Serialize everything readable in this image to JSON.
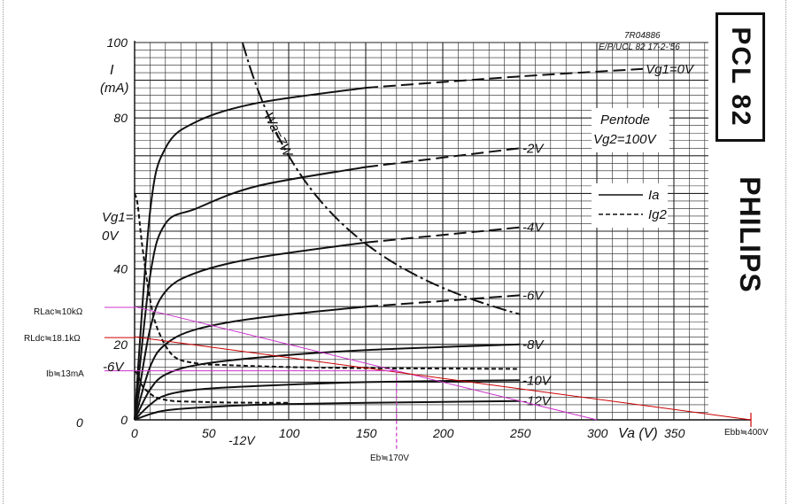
{
  "header": {
    "doc_code": "7R04886",
    "doc_ref": "E/P/UCL 82 17-2-'56",
    "tube_type": "PCL 82",
    "brand": "PHILIPS"
  },
  "chart_data": {
    "type": "line",
    "xlabel": "Va (V)",
    "ylabel_top": "I",
    "ylabel_unit": "(mA)",
    "xlim": [
      0,
      400
    ],
    "ylim": [
      0,
      100
    ],
    "x_ticks": [
      0,
      50,
      100,
      150,
      200,
      250,
      300,
      350
    ],
    "y_ticks": [
      {
        "v": 100,
        "t": "100"
      },
      {
        "v": 80,
        "t": "80"
      },
      {
        "v": 40,
        "t": "40"
      },
      {
        "v": 20,
        "t": "20"
      },
      {
        "v": 0,
        "t": "0"
      }
    ],
    "grid": true,
    "mode_text": "Pentode",
    "vg2_text": "Vg2=100V",
    "legend": [
      {
        "name": "Ia",
        "style": "solid"
      },
      {
        "name": "Ig2",
        "style": "dashed"
      }
    ],
    "vg1_axis_label": "Vg1=",
    "vg1_axis_value": "0V",
    "vg1_low_label": "-6V",
    "vg1_bottom_label": "-12V",
    "y_bottom_label": "0",
    "power_label": "Wa=7W",
    "series": [
      {
        "name": "Vg1=0V",
        "label": "Vg1=0V",
        "x": [
          0,
          10,
          20,
          40,
          80,
          150,
          250,
          330
        ],
        "y": [
          0,
          55,
          72,
          79,
          84,
          88,
          91,
          93
        ],
        "dashed_from": 150
      },
      {
        "name": "-2V",
        "label": "-2V",
        "x": [
          0,
          10,
          20,
          40,
          80,
          150,
          250
        ],
        "y": [
          0,
          38,
          52,
          56,
          62,
          67,
          72
        ],
        "dashed_from": 150
      },
      {
        "name": "-4V",
        "label": "-4V",
        "x": [
          0,
          10,
          20,
          40,
          80,
          150,
          250
        ],
        "y": [
          0,
          24,
          34,
          39,
          43,
          47,
          51
        ],
        "dashed_from": 150
      },
      {
        "name": "-6V",
        "label": "-6V",
        "x": [
          0,
          10,
          20,
          40,
          80,
          150,
          250
        ],
        "y": [
          0,
          14,
          20,
          24,
          27,
          30,
          33
        ],
        "dashed_from": 150
      },
      {
        "name": "-8V",
        "label": "-8V",
        "x": [
          0,
          10,
          20,
          40,
          80,
          150,
          250
        ],
        "y": [
          0,
          8,
          12,
          14.5,
          16.5,
          18.5,
          20
        ]
      },
      {
        "name": "-10V",
        "label": "-10V",
        "x": [
          0,
          10,
          20,
          40,
          80,
          150,
          250
        ],
        "y": [
          0,
          4,
          6.5,
          8,
          9,
          10,
          10.5
        ]
      },
      {
        "name": "-12V",
        "label": "-12V",
        "x": [
          0,
          10,
          20,
          40,
          80,
          150,
          250
        ],
        "y": [
          0,
          1.5,
          2.5,
          3.2,
          4,
          4.5,
          5
        ]
      }
    ],
    "ig2_curves": [
      {
        "x": [
          0,
          2,
          5,
          10,
          15,
          25,
          40,
          60,
          100,
          150,
          250
        ],
        "y": [
          60,
          57,
          46,
          32,
          24,
          17,
          15,
          14.5,
          14,
          13.7,
          13.5
        ]
      },
      {
        "x": [
          0,
          2,
          5,
          10,
          15,
          25,
          40,
          60,
          100
        ],
        "y": [
          13,
          12,
          9,
          7,
          5.8,
          5,
          4.8,
          4.6,
          4.5
        ]
      }
    ],
    "power_hyperbola_watts": 7,
    "load_lines": [
      {
        "name": "RLac≒10kΩ",
        "x": [
          0,
          300
        ],
        "y": [
          30,
          0
        ],
        "color": "#cc33cc"
      },
      {
        "name": "RLdc≒18.1kΩ",
        "x": [
          0,
          400
        ],
        "y": [
          22,
          0
        ],
        "color": "#cc0000"
      }
    ],
    "annotations": [
      {
        "text": "RLac≒10kΩ",
        "color": "#cc33cc",
        "y": 29.8
      },
      {
        "text": "RLdc≒18.1kΩ",
        "color": "#cc0000",
        "y": 21.8
      },
      {
        "text": "Ib≒13mA",
        "color": "#cc33cc",
        "y": 13
      }
    ],
    "ib_line": {
      "value": 13,
      "x_end": 170,
      "color": "#cc33cc"
    },
    "eb_marker": {
      "value": 170,
      "text": "Eb≒170V",
      "color": "#cc33cc"
    },
    "ebb_marker": {
      "value": 400,
      "text": "Ebb≒400V",
      "color": "#cc0000"
    }
  }
}
